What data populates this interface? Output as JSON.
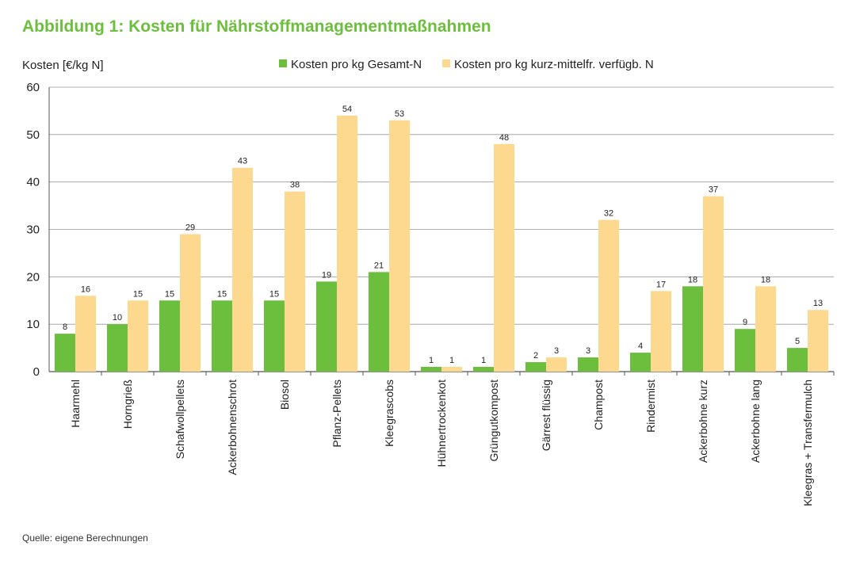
{
  "figure": {
    "title": "Abbildung 1: Kosten für Nährstoffmanagementmaßnahmen",
    "source": "Quelle: eigene Berechnungen"
  },
  "colors": {
    "gesamt": "#6cbf3c",
    "verfuegbar": "#fdd88f",
    "title": "#6cbf3c",
    "grid": "#999999"
  },
  "chart_data": {
    "type": "bar",
    "title": "Abbildung 1: Kosten für Nährstoffmanagementmaßnahmen",
    "ylabel": "Kosten [€/kg N]",
    "xlabel": "",
    "ylim": [
      0,
      60
    ],
    "yticks": [
      0,
      10,
      20,
      30,
      40,
      50,
      60
    ],
    "grid": true,
    "legend_position": "top",
    "categories": [
      "Haarmehl",
      "Horngrieß",
      "Schafwollpellets",
      "Ackerbohnenschrot",
      "Biosol",
      "Pflanz-Pellets",
      "Kleegrascobs",
      "Hühnertrockenkot",
      "Grüngutkompost",
      "Gärrest flüssig",
      "Champost",
      "Rindermist",
      "Ackerbohne kurz",
      "Ackerbohne lang",
      "Kleegras + Transfermulch"
    ],
    "series": [
      {
        "name": "Kosten pro kg Gesamt-N",
        "values": [
          8,
          10,
          15,
          15,
          15,
          19,
          21,
          1,
          1,
          2,
          3,
          4,
          18,
          9,
          5
        ]
      },
      {
        "name": "Kosten pro kg kurz-mittelfr. verfügb. N",
        "values": [
          16,
          15,
          29,
          43,
          38,
          54,
          53,
          1,
          48,
          3,
          32,
          17,
          37,
          18,
          13
        ]
      }
    ]
  }
}
